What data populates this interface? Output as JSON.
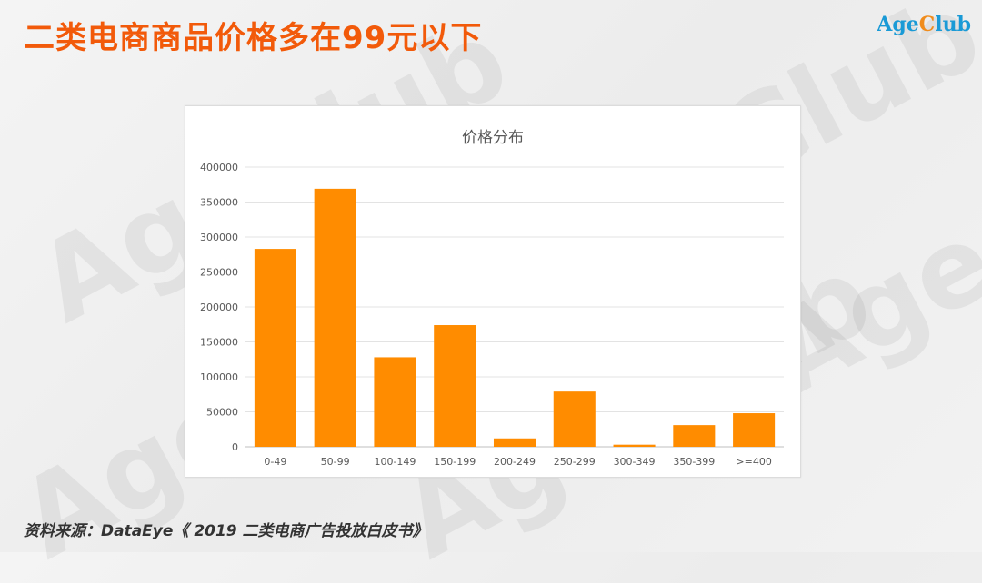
{
  "slide": {
    "title": "二类电商商品价格多在99元以下",
    "source": "资料来源：DataEye《 2019 二类电商广告投放白皮书》"
  },
  "logo": {
    "text_main": "Age",
    "text_accent": "C",
    "text_rest": "lub"
  },
  "watermark": {
    "text": "AgeClub"
  },
  "colors": {
    "title": "#f25a0a",
    "bar": "#ff8c00",
    "logo_blue": "#1a9ad6",
    "logo_orange": "#f08c1c"
  },
  "chart_data": {
    "type": "bar",
    "title": "价格分布",
    "categories": [
      "0-49",
      "50-99",
      "100-149",
      "150-199",
      "200-249",
      "250-299",
      "300-349",
      "350-399",
      ">=400"
    ],
    "values": [
      283000,
      369000,
      128000,
      174000,
      12000,
      79000,
      3000,
      31000,
      48000
    ],
    "ylim": [
      0,
      400000
    ],
    "yticks": [
      0,
      50000,
      100000,
      150000,
      200000,
      250000,
      300000,
      350000,
      400000
    ],
    "grid": true,
    "legend": false
  }
}
